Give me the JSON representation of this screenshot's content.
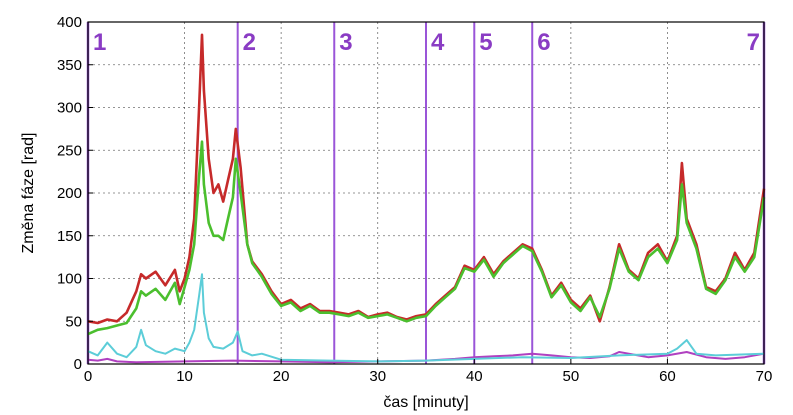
{
  "chart_data": {
    "type": "line",
    "xlabel": "čas [minuty]",
    "ylabel": "Změna fáze [rad]",
    "xlim": [
      0,
      70
    ],
    "ylim": [
      0,
      400
    ],
    "xticks": [
      "0",
      "10",
      "20",
      "30",
      "40",
      "50",
      "60",
      "70"
    ],
    "yticks": [
      "0",
      "50",
      "100",
      "150",
      "200",
      "250",
      "300",
      "350",
      "400"
    ],
    "grid": true,
    "phase_markers": [
      {
        "label": "1",
        "x": 0
      },
      {
        "label": "2",
        "x": 15.5
      },
      {
        "label": "3",
        "x": 25.5
      },
      {
        "label": "4",
        "x": 35
      },
      {
        "label": "5",
        "x": 40
      },
      {
        "label": "6",
        "x": 46
      },
      {
        "label": "7",
        "x": 70
      }
    ],
    "marker_color": "#9a55d8",
    "series": [
      {
        "color": "#c62a2a",
        "x": [
          0,
          1,
          2,
          3,
          4,
          5,
          5.5,
          6,
          7,
          8,
          9,
          9.5,
          10,
          10.5,
          11,
          11.5,
          11.8,
          12,
          12.5,
          13,
          13.5,
          14,
          14.5,
          15,
          15.3,
          15.8,
          16.5,
          17,
          18,
          19,
          20,
          21,
          22,
          23,
          24,
          25,
          26,
          27,
          28,
          29,
          30,
          31,
          32,
          33,
          34,
          35,
          36,
          37,
          38,
          39,
          40,
          41,
          42,
          43,
          44,
          45,
          46,
          47,
          48,
          49,
          50,
          51,
          52,
          53,
          54,
          55,
          56,
          57,
          58,
          59,
          60,
          61,
          61.5,
          62,
          63,
          64,
          65,
          66,
          67,
          68,
          69,
          70
        ],
        "y": [
          50,
          48,
          52,
          50,
          60,
          85,
          105,
          100,
          108,
          92,
          110,
          85,
          100,
          125,
          170,
          300,
          385,
          320,
          240,
          200,
          210,
          190,
          215,
          240,
          275,
          230,
          140,
          120,
          105,
          85,
          70,
          75,
          65,
          70,
          62,
          62,
          60,
          58,
          62,
          55,
          58,
          60,
          55,
          52,
          56,
          58,
          70,
          80,
          90,
          115,
          110,
          125,
          105,
          120,
          130,
          140,
          135,
          110,
          80,
          95,
          75,
          65,
          80,
          50,
          90,
          140,
          110,
          100,
          130,
          140,
          120,
          150,
          235,
          170,
          140,
          90,
          85,
          100,
          130,
          110,
          130,
          205
        ]
      },
      {
        "color": "#4bbf2e",
        "x": [
          0,
          1,
          2,
          3,
          4,
          5,
          5.5,
          6,
          7,
          8,
          9,
          9.5,
          10,
          10.5,
          11,
          11.5,
          11.8,
          12,
          12.5,
          13,
          13.5,
          14,
          14.5,
          15,
          15.3,
          15.8,
          16.5,
          17,
          18,
          19,
          20,
          21,
          22,
          23,
          24,
          25,
          26,
          27,
          28,
          29,
          30,
          31,
          32,
          33,
          34,
          35,
          36,
          37,
          38,
          39,
          40,
          41,
          42,
          43,
          44,
          45,
          46,
          47,
          48,
          49,
          50,
          51,
          52,
          53,
          54,
          55,
          56,
          57,
          58,
          59,
          60,
          61,
          61.5,
          62,
          63,
          64,
          65,
          66,
          67,
          68,
          69,
          70
        ],
        "y": [
          35,
          40,
          42,
          45,
          48,
          65,
          85,
          80,
          88,
          75,
          95,
          70,
          90,
          110,
          140,
          220,
          260,
          210,
          165,
          150,
          150,
          145,
          170,
          195,
          240,
          200,
          140,
          118,
          102,
          82,
          68,
          72,
          62,
          68,
          60,
          60,
          58,
          56,
          60,
          54,
          56,
          58,
          54,
          50,
          54,
          56,
          68,
          78,
          88,
          112,
          108,
          122,
          102,
          118,
          128,
          138,
          132,
          108,
          78,
          92,
          72,
          62,
          78,
          55,
          88,
          135,
          108,
          98,
          125,
          135,
          118,
          145,
          210,
          165,
          135,
          88,
          82,
          98,
          125,
          108,
          125,
          195
        ]
      },
      {
        "color": "#5ccdd8",
        "x": [
          0,
          1,
          2,
          3,
          4,
          5,
          5.5,
          6,
          7,
          8,
          9,
          10,
          10.5,
          11,
          11.5,
          11.8,
          12,
          12.5,
          13,
          14,
          15,
          15.5,
          16,
          17,
          18,
          20,
          25,
          30,
          35,
          40,
          45,
          50,
          55,
          60,
          61,
          62,
          63,
          65,
          70
        ],
        "y": [
          15,
          10,
          25,
          12,
          8,
          20,
          40,
          22,
          15,
          12,
          18,
          15,
          25,
          40,
          80,
          105,
          60,
          30,
          20,
          18,
          25,
          38,
          15,
          10,
          12,
          5,
          4,
          3,
          4,
          6,
          8,
          7,
          10,
          12,
          18,
          28,
          12,
          10,
          12
        ]
      },
      {
        "color": "#b040c0",
        "x": [
          0,
          1,
          2,
          3,
          5,
          10,
          15,
          20,
          25,
          30,
          35,
          38,
          40,
          42,
          44,
          46,
          48,
          50,
          52,
          54,
          55,
          56,
          58,
          60,
          62,
          64,
          66,
          68,
          70
        ],
        "y": [
          5,
          4,
          6,
          3,
          2,
          3,
          4,
          3,
          2,
          3,
          4,
          6,
          8,
          9,
          10,
          12,
          10,
          8,
          7,
          9,
          14,
          12,
          8,
          10,
          14,
          8,
          6,
          8,
          12
        ]
      }
    ]
  }
}
